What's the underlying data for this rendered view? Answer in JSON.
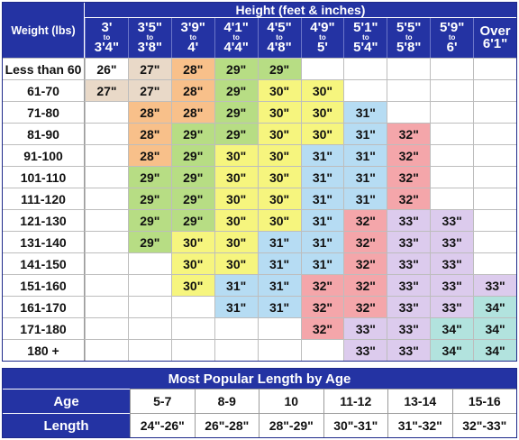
{
  "main_table": {
    "corner_label": "Weight (lbs)",
    "title": "Height (feet & inches)",
    "columns": [
      {
        "top": "3'",
        "to": "to",
        "bottom": "3'4\""
      },
      {
        "top": "3'5\"",
        "to": "to",
        "bottom": "3'8\""
      },
      {
        "top": "3'9\"",
        "to": "to",
        "bottom": "4'"
      },
      {
        "top": "4'1\"",
        "to": "to",
        "bottom": "4'4\""
      },
      {
        "top": "4'5\"",
        "to": "to",
        "bottom": "4'8\""
      },
      {
        "top": "4'9\"",
        "to": "to",
        "bottom": "5'"
      },
      {
        "top": "5'1\"",
        "to": "to",
        "bottom": "5'4\""
      },
      {
        "top": "5'5\"",
        "to": "to",
        "bottom": "5'8\""
      },
      {
        "top": "5'9\"",
        "to": "to",
        "bottom": "6'"
      },
      {
        "top": "Over",
        "to": "",
        "bottom": "6'1\""
      }
    ],
    "colors": {
      "26\"": "#ffffff",
      "27\"": "#e9d9c8",
      "28\"": "#f8c08a",
      "29\"": "#b7dd84",
      "30\"": "#f6f57e",
      "31\"": "#b6dcf3",
      "32\"": "#f4a6aa",
      "33\"": "#dccbed",
      "34\"": "#b2e3de",
      "": "#ffffff"
    },
    "rows": [
      {
        "label": "Less than 60",
        "cells": [
          "26\"",
          "27\"",
          "28\"",
          "29\"",
          "29\"",
          "",
          "",
          "",
          "",
          ""
        ]
      },
      {
        "label": "61-70",
        "cells": [
          "27\"",
          "27\"",
          "28\"",
          "29\"",
          "30\"",
          "30\"",
          "",
          "",
          "",
          ""
        ]
      },
      {
        "label": "71-80",
        "cells": [
          "",
          "28\"",
          "28\"",
          "29\"",
          "30\"",
          "30\"",
          "31\"",
          "",
          "",
          ""
        ]
      },
      {
        "label": "81-90",
        "cells": [
          "",
          "28\"",
          "29\"",
          "29\"",
          "30\"",
          "30\"",
          "31\"",
          "32\"",
          "",
          ""
        ]
      },
      {
        "label": "91-100",
        "cells": [
          "",
          "28\"",
          "29\"",
          "30\"",
          "30\"",
          "31\"",
          "31\"",
          "32\"",
          "",
          ""
        ]
      },
      {
        "label": "101-110",
        "cells": [
          "",
          "29\"",
          "29\"",
          "30\"",
          "30\"",
          "31\"",
          "31\"",
          "32\"",
          "",
          ""
        ]
      },
      {
        "label": "111-120",
        "cells": [
          "",
          "29\"",
          "29\"",
          "30\"",
          "30\"",
          "31\"",
          "31\"",
          "32\"",
          "",
          ""
        ]
      },
      {
        "label": "121-130",
        "cells": [
          "",
          "29\"",
          "29\"",
          "30\"",
          "30\"",
          "31\"",
          "32\"",
          "33\"",
          "33\"",
          ""
        ]
      },
      {
        "label": "131-140",
        "cells": [
          "",
          "29\"",
          "30\"",
          "30\"",
          "31\"",
          "31\"",
          "32\"",
          "33\"",
          "33\"",
          ""
        ]
      },
      {
        "label": "141-150",
        "cells": [
          "",
          "",
          "30\"",
          "30\"",
          "31\"",
          "31\"",
          "32\"",
          "33\"",
          "33\"",
          ""
        ]
      },
      {
        "label": "151-160",
        "cells": [
          "",
          "",
          "30\"",
          "31\"",
          "31\"",
          "32\"",
          "32\"",
          "33\"",
          "33\"",
          "33\""
        ]
      },
      {
        "label": "161-170",
        "cells": [
          "",
          "",
          "",
          "31\"",
          "31\"",
          "32\"",
          "32\"",
          "33\"",
          "33\"",
          "34\""
        ]
      },
      {
        "label": "171-180",
        "cells": [
          "",
          "",
          "",
          "",
          "",
          "32\"",
          "33\"",
          "33\"",
          "34\"",
          "34\""
        ]
      },
      {
        "label": "180 +",
        "cells": [
          "",
          "",
          "",
          "",
          "",
          "",
          "33\"",
          "33\"",
          "34\"",
          "34\""
        ]
      }
    ]
  },
  "age_table": {
    "title": "Most Popular Length by Age",
    "age_label": "Age",
    "length_label": "Length",
    "ages": [
      "5-7",
      "8-9",
      "10",
      "11-12",
      "13-14",
      "15-16"
    ],
    "lengths": [
      "24\"-26\"",
      "26\"-28\"",
      "28\"-29\"",
      "30\"-31\"",
      "31\"-32\"",
      "32\"-33\""
    ]
  }
}
